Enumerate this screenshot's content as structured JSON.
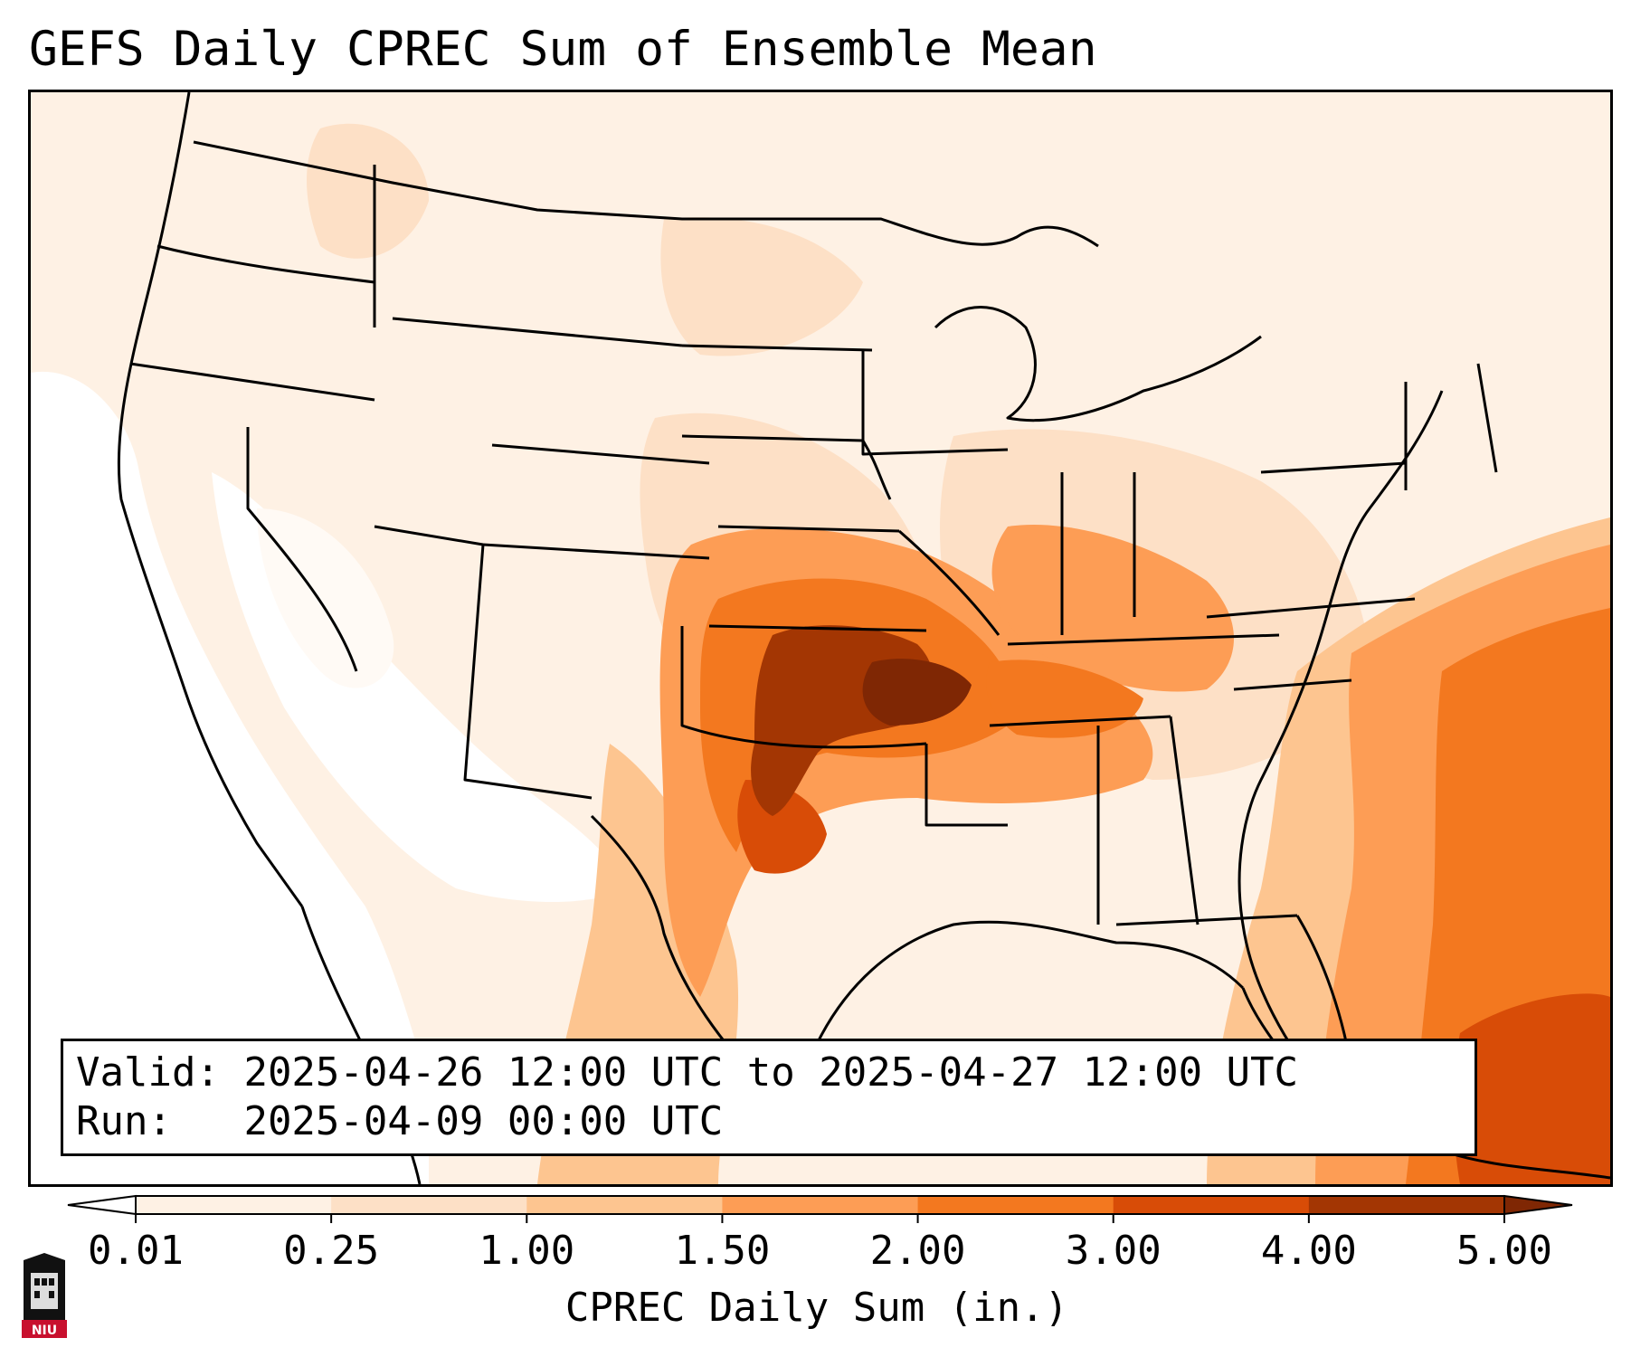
{
  "title": "GEFS Daily CPREC Sum of Ensemble Mean",
  "info": {
    "valid_label": "Valid:",
    "valid_value": "2025-04-26 12:00 UTC to 2025-04-27 12:00 UTC",
    "run_label": "Run:",
    "run_value": "2025-04-09 00:00 UTC"
  },
  "colorbar": {
    "title": "CPREC Daily Sum (in.)",
    "ticks": [
      "0.01",
      "0.25",
      "1.00",
      "1.50",
      "2.00",
      "3.00",
      "4.00",
      "5.00"
    ],
    "colors": [
      "#ffffff",
      "#fef1e4",
      "#fde0c6",
      "#fdc590",
      "#fd9d55",
      "#f3781f",
      "#d84c07",
      "#a33603",
      "#7f2704"
    ]
  },
  "logo": {
    "text": "NIU"
  },
  "map_data": {
    "type": "precipitation-heatmap",
    "region": "Contiguous United States",
    "variable": "CPREC",
    "units": "in.",
    "max_region": "southeast Kansas / southern Missouri / northeast Oklahoma",
    "secondary_maximum": "western Atlantic, southeast of the Bahamas"
  }
}
